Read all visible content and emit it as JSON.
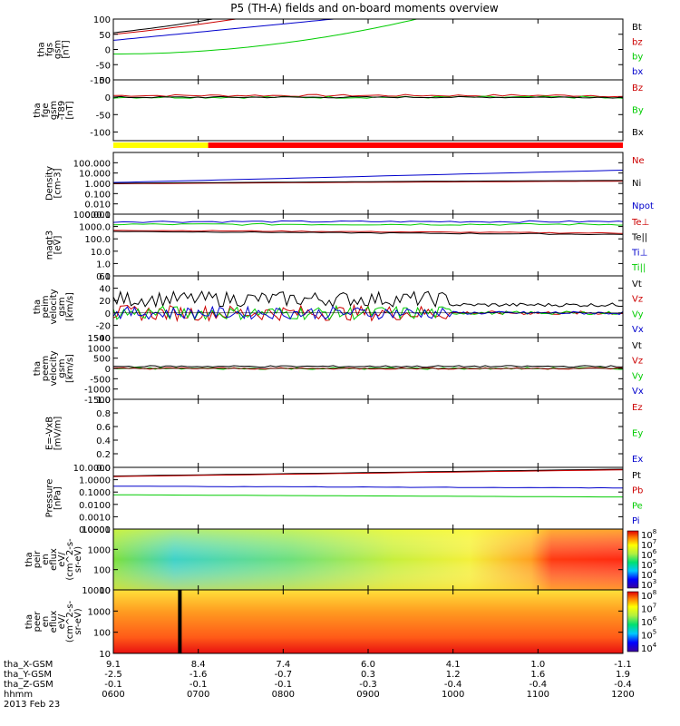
{
  "title": "P5 (TH-A) fields and on-board moments overview",
  "chart_data": [
    {
      "id": "fgs",
      "type": "line",
      "ylabel": [
        "tha",
        "fgs",
        "gsm",
        "[nT]"
      ],
      "ylim": [
        -100,
        100
      ],
      "ticks": [
        "100",
        "50",
        "0",
        "-50",
        "-100"
      ],
      "legend": [
        "Bt",
        "bz",
        "by",
        "bx"
      ],
      "colors": [
        "#000000",
        "#cc0000",
        "#00cc00",
        "#0000cc"
      ]
    },
    {
      "id": "fge",
      "type": "line",
      "ylabel": [
        "tha",
        "fge",
        "gsm",
        "-T89",
        "[nT]"
      ],
      "ylim": [
        -125,
        50
      ],
      "ticks": [
        "50",
        "0",
        "-50",
        "-100"
      ],
      "legend": [
        "Bz",
        "By",
        "Bx"
      ],
      "colors": [
        "#cc0000",
        "#00cc00",
        "#000000"
      ]
    },
    {
      "id": "density",
      "type": "line",
      "ylabel": [
        "Density",
        "[cm-3]"
      ],
      "scale": "log",
      "ylim": [
        0.001,
        1000
      ],
      "ticks": [
        "100.000",
        "10.000",
        "1.000",
        "0.100",
        "0.010",
        "0.001"
      ],
      "legend": [
        "Ne",
        "Ni",
        "Npot"
      ],
      "colors": [
        "#cc0000",
        "#000000",
        "#0000cc"
      ]
    },
    {
      "id": "temp",
      "type": "line",
      "ylabel": [
        "magt3",
        "[eV]"
      ],
      "scale": "log",
      "ylim": [
        0.1,
        10000
      ],
      "ticks": [
        "10000.0",
        "1000.0",
        "100.0",
        "10.0",
        "1.0",
        "0.1"
      ],
      "legend": [
        "Te⊥",
        "Te||",
        "Ti⊥",
        "Ti||"
      ],
      "colors": [
        "#cc0000",
        "#000000",
        "#0000cc",
        "#00cc00"
      ]
    },
    {
      "id": "peim",
      "type": "line",
      "ylabel": [
        "tha",
        "peim",
        "velocity",
        "gsm",
        "[km/s]"
      ],
      "ylim": [
        -40,
        60
      ],
      "ticks": [
        "60",
        "40",
        "20",
        "0",
        "-20",
        "-40"
      ],
      "legend": [
        "Vt",
        "Vz",
        "Vy",
        "Vx"
      ],
      "colors": [
        "#000000",
        "#cc0000",
        "#00cc00",
        "#0000cc"
      ]
    },
    {
      "id": "peem",
      "type": "line",
      "ylabel": [
        "tha",
        "peem",
        "velocity",
        "gsm",
        "[km/s]"
      ],
      "ylim": [
        -1500,
        1500
      ],
      "ticks": [
        "1500",
        "1000",
        "500",
        "0",
        "-500",
        "-1000",
        "-1500"
      ],
      "legend": [
        "Vt",
        "Vz",
        "Vy",
        "Vx"
      ],
      "colors": [
        "#000000",
        "#cc0000",
        "#00cc00",
        "#0000cc"
      ]
    },
    {
      "id": "efield",
      "type": "line",
      "ylabel": [
        "E=-VxB",
        "[mV/m]"
      ],
      "ylim": [
        0,
        1
      ],
      "ticks": [
        "1.0",
        "0.8",
        "0.6",
        "0.4",
        "0.2",
        "0.0"
      ],
      "legend": [
        "Ez",
        "Ey",
        "Ex"
      ],
      "colors": [
        "#cc0000",
        "#00cc00",
        "#0000cc"
      ]
    },
    {
      "id": "pressure",
      "type": "line",
      "ylabel": [
        "Pressure",
        "[nPa]"
      ],
      "scale": "log",
      "ylim": [
        0.0001,
        10
      ],
      "ticks": [
        "10.0000",
        "1.0000",
        "0.1000",
        "0.0100",
        "0.0010",
        "0.0001"
      ],
      "legend": [
        "Pt",
        "Pb",
        "Pe",
        "Pi"
      ],
      "colors": [
        "#000000",
        "#cc0000",
        "#00cc00",
        "#0000cc"
      ]
    },
    {
      "id": "peir",
      "type": "heatmap",
      "ylabel": [
        "tha",
        "peir",
        "en",
        "eflux",
        "eV/",
        "(cm^2-s-",
        "sr-eV)"
      ],
      "scale": "log",
      "ylim": [
        10,
        10000
      ],
      "ticks": [
        "10000",
        "1000",
        "100",
        "10"
      ],
      "colorbar": [
        "10^8",
        "10^7",
        "10^6",
        "10^5",
        "10^4",
        "10^3"
      ]
    },
    {
      "id": "peer",
      "type": "heatmap",
      "ylabel": [
        "tha",
        "peer",
        "en",
        "eflux",
        "eV/",
        "(cm^2-s-",
        "sr-eV)"
      ],
      "scale": "log",
      "ylim": [
        10,
        10000
      ],
      "ticks": [
        "10000",
        "1000",
        "100",
        "10"
      ],
      "colorbar": [
        "10^8",
        "10^7",
        "10^6",
        "10^5",
        "10^4"
      ]
    }
  ],
  "mode_bar": {
    "colors": [
      "#ffff00",
      "#ff0000"
    ],
    "switch_hhmm": "0707"
  },
  "xaxis": {
    "labels": [
      "tha_X-GSM",
      "tha_Y-GSM",
      "tha_Z-GSM",
      "hhmm"
    ],
    "columns": [
      [
        "9.1",
        "-2.5",
        "-0.1",
        "0600"
      ],
      [
        "8.4",
        "-1.6",
        "-0.1",
        "0700"
      ],
      [
        "7.4",
        "-0.7",
        "-0.1",
        "0800"
      ],
      [
        "6.0",
        "0.3",
        "-0.3",
        "0900"
      ],
      [
        "4.1",
        "1.2",
        "-0.4",
        "1000"
      ],
      [
        "1.0",
        "1.6",
        "-0.4",
        "1100"
      ],
      [
        "-1.1",
        "1.9",
        "-0.4",
        "1200"
      ]
    ],
    "date": "2013 Feb 23"
  }
}
